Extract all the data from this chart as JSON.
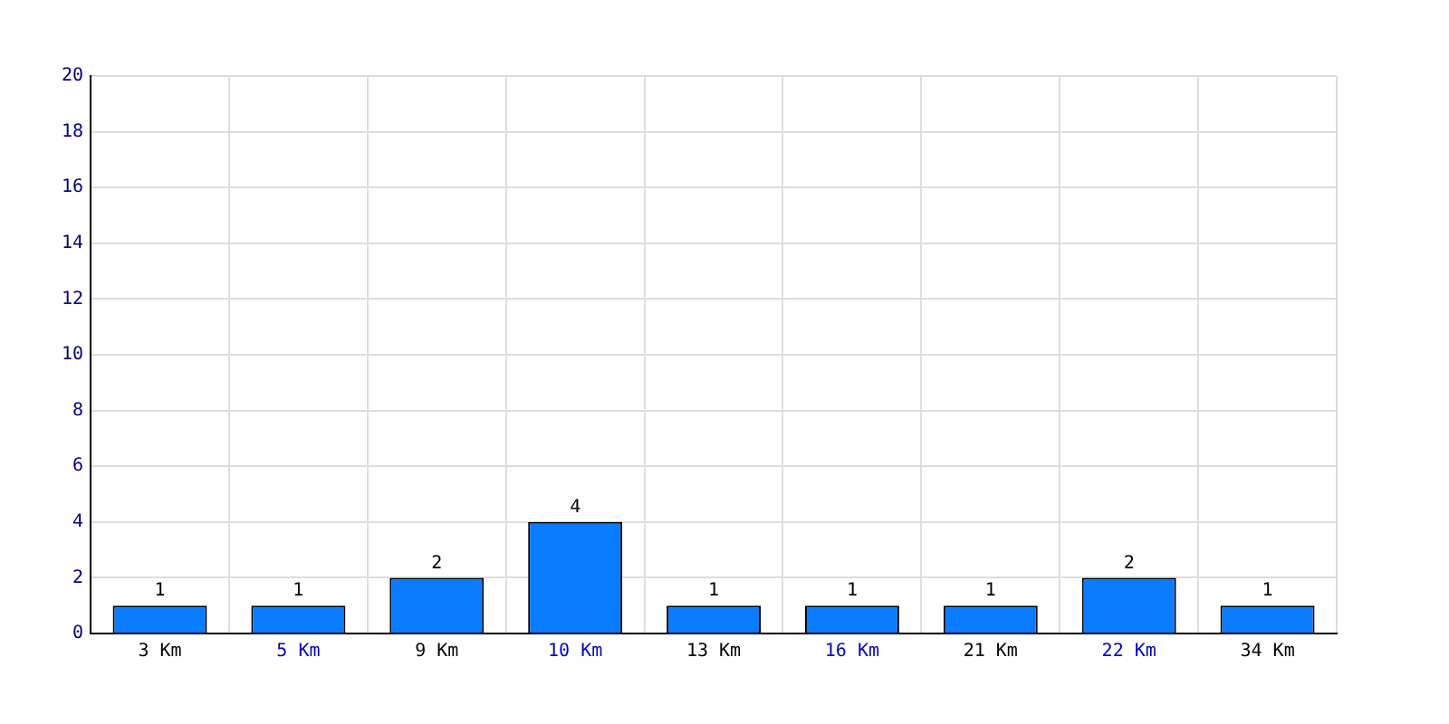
{
  "chart_data": {
    "type": "bar",
    "categories": [
      "3 Km",
      "5 Km",
      "9 Km",
      "10 Km",
      "13 Km",
      "16 Km",
      "21 Km",
      "22 Km",
      "34 Km"
    ],
    "values": [
      1,
      1,
      2,
      4,
      1,
      1,
      1,
      2,
      1
    ],
    "color": "#0a7cff",
    "ylim": [
      0,
      20
    ],
    "yticks": [
      0,
      2,
      4,
      6,
      8,
      10,
      12,
      14,
      16,
      18,
      20
    ],
    "grid": true,
    "data_labels": true
  }
}
